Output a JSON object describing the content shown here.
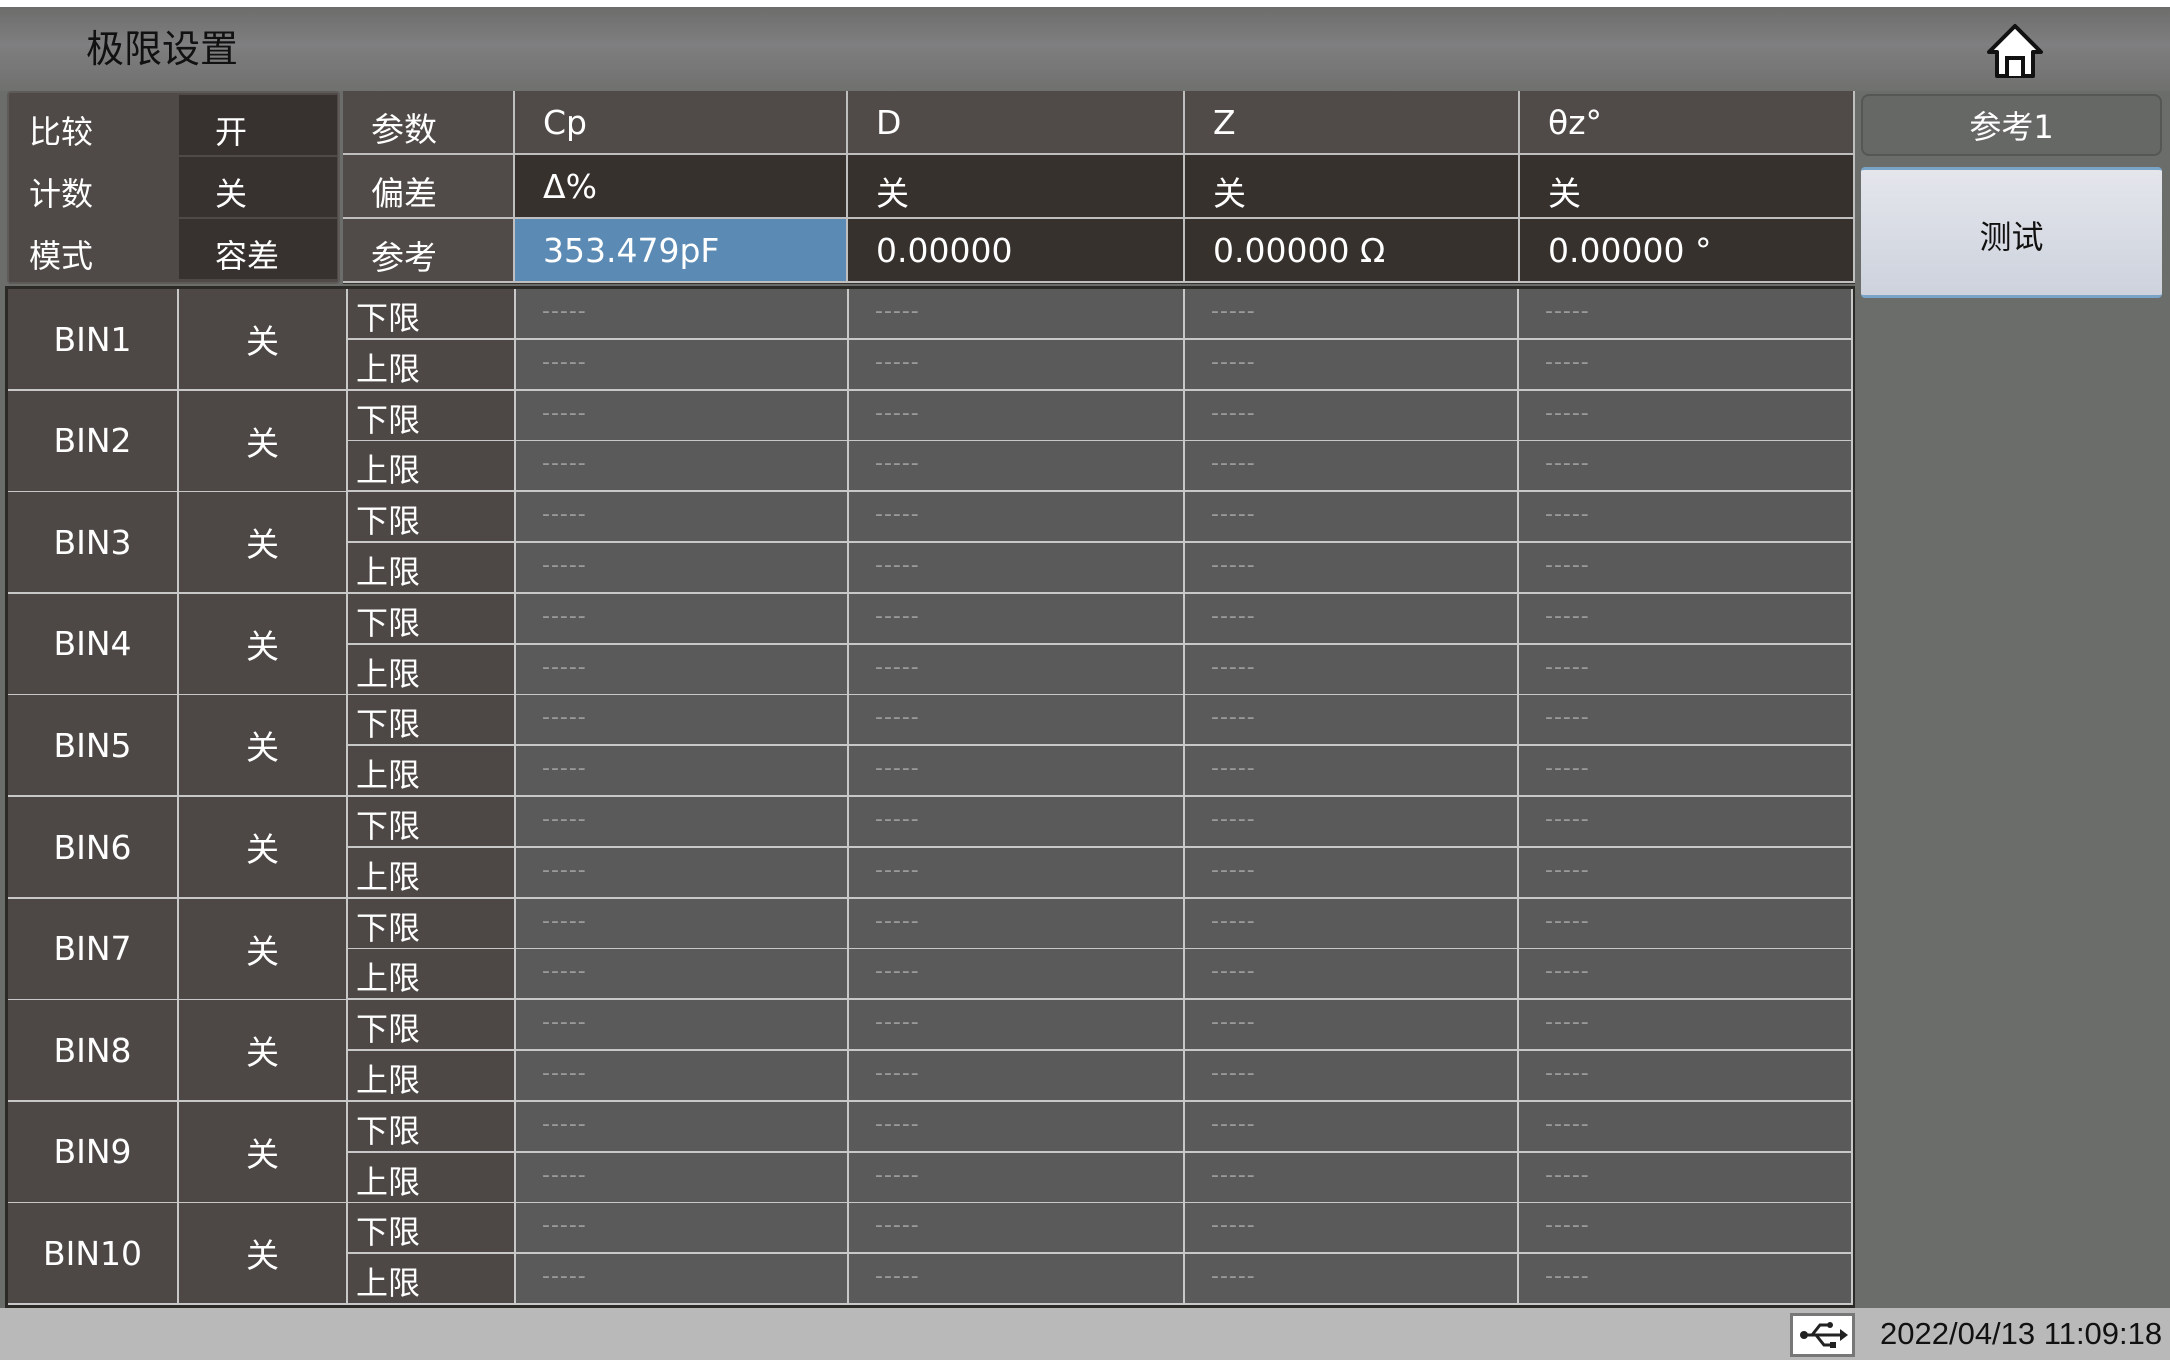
{
  "header": {
    "title": "极限设置",
    "home_icon": "home-icon"
  },
  "summary": [
    {
      "label": "比较",
      "value": "开"
    },
    {
      "label": "计数",
      "value": "关"
    },
    {
      "label": "模式",
      "value": "容差"
    }
  ],
  "params": {
    "header": [
      "参数",
      "Cp",
      "D",
      "Z",
      "θz°"
    ],
    "deviation": [
      "偏差",
      "Δ%",
      "关",
      "关",
      "关"
    ],
    "reference": [
      "参考",
      "353.479pF",
      "0.00000",
      "0.00000 Ω",
      "0.00000 °"
    ]
  },
  "bins": {
    "lower_label": "下限",
    "upper_label": "上限",
    "empty": "-----",
    "rows": [
      {
        "name": "BIN1",
        "state": "关"
      },
      {
        "name": "BIN2",
        "state": "关"
      },
      {
        "name": "BIN3",
        "state": "关"
      },
      {
        "name": "BIN4",
        "state": "关"
      },
      {
        "name": "BIN5",
        "state": "关"
      },
      {
        "name": "BIN6",
        "state": "关"
      },
      {
        "name": "BIN7",
        "state": "关"
      },
      {
        "name": "BIN8",
        "state": "关"
      },
      {
        "name": "BIN9",
        "state": "关"
      },
      {
        "name": "BIN10",
        "state": "关"
      }
    ]
  },
  "sidebar": {
    "ref_button": "参考1",
    "test_button": "测试"
  },
  "footer": {
    "usb_icon": "usb-icon",
    "datetime": "2022/04/13 11:09:18"
  },
  "colors": {
    "selected": "#5b8bb5"
  }
}
